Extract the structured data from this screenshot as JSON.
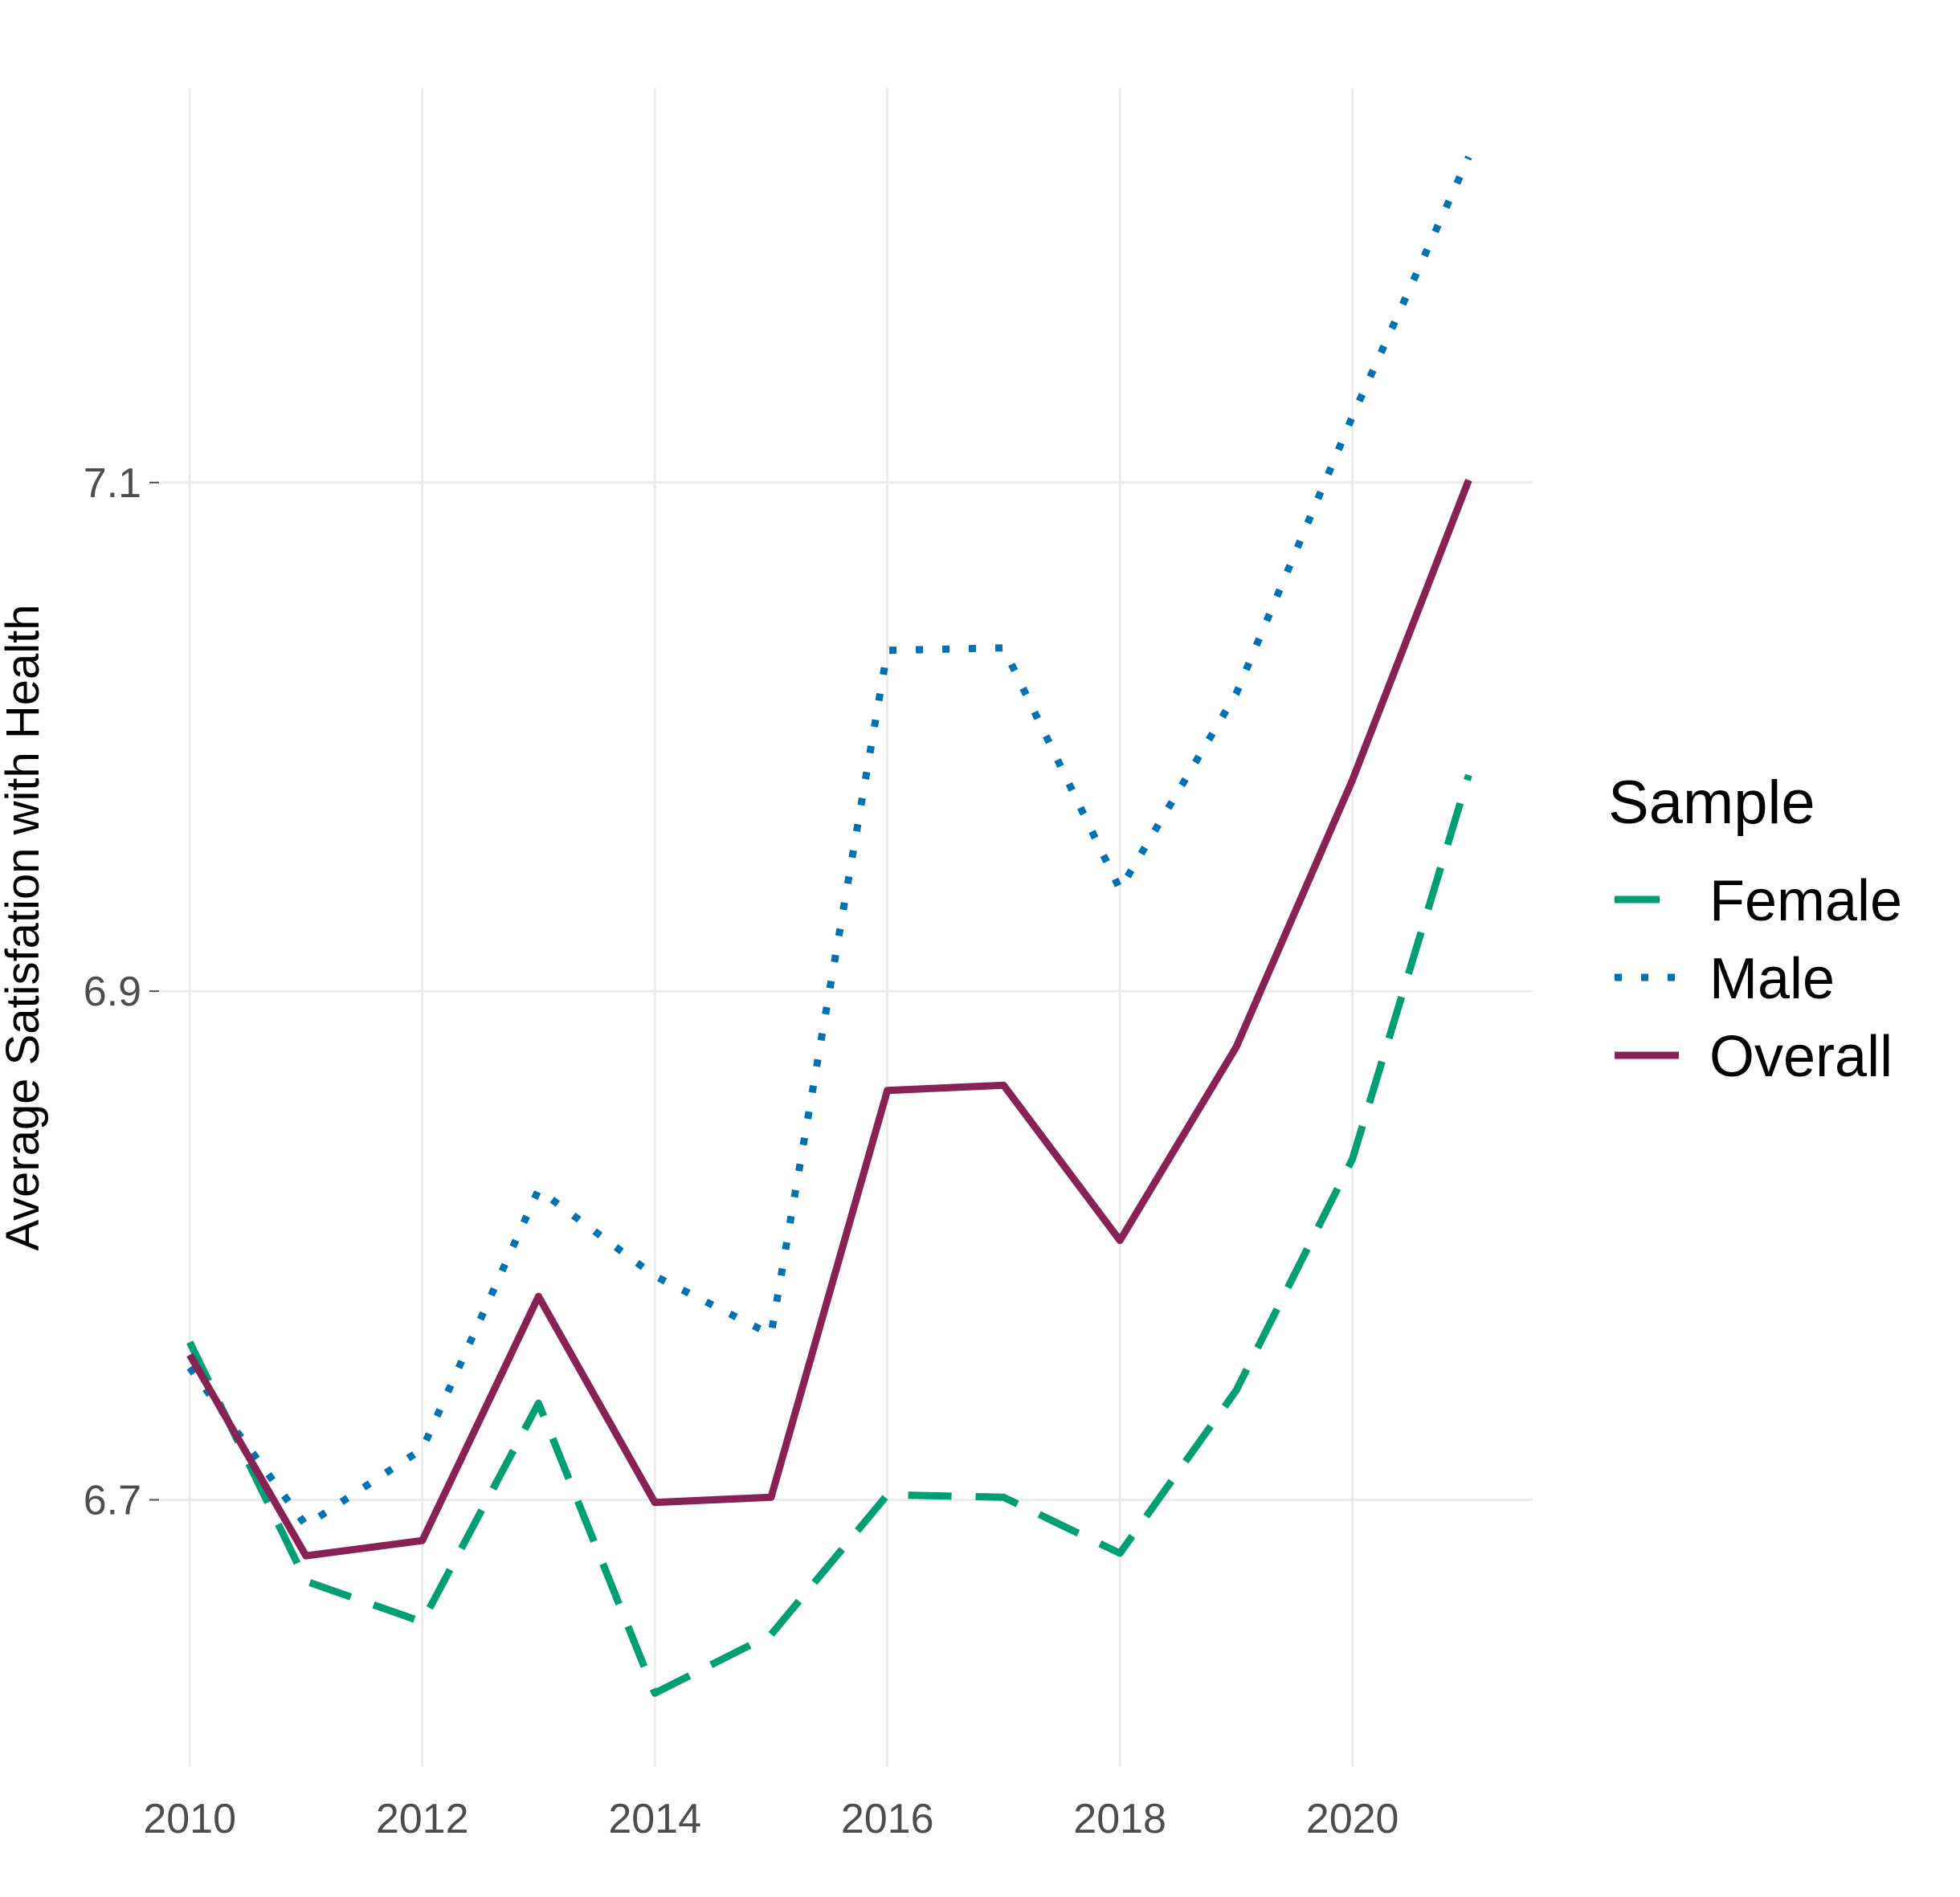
{
  "chart_data": {
    "type": "line",
    "title": "",
    "xlabel": "",
    "ylabel": "Average Satisfation with Health",
    "x": [
      2010,
      2011,
      2012,
      2013,
      2014,
      2015,
      2016,
      2017,
      2018,
      2019,
      2020,
      2021
    ],
    "xticks": [
      "2010",
      "2012",
      "2014",
      "2016",
      "2018",
      "2020"
    ],
    "xlim": [
      2009.75,
      2021.55
    ],
    "yticks": [
      "6.7",
      "6.9",
      "7.1"
    ],
    "ylim": [
      6.595,
      7.255
    ],
    "grid": true,
    "legend": {
      "title": "Sample",
      "position": "right"
    },
    "series": [
      {
        "name": "Female",
        "style": "dashed",
        "color": "#009E73",
        "values": [
          6.762,
          6.668,
          6.652,
          6.738,
          6.624,
          6.647,
          6.702,
          6.701,
          6.679,
          6.743,
          6.834,
          6.985
        ]
      },
      {
        "name": "Male",
        "style": "dotted",
        "color": "#0072B2",
        "values": [
          6.752,
          6.69,
          6.72,
          6.822,
          6.788,
          6.765,
          7.034,
          7.035,
          6.94,
          7.017,
          7.126,
          7.228
        ]
      },
      {
        "name": "Overall",
        "style": "solid",
        "color": "#882255",
        "values": [
          6.757,
          6.678,
          6.684,
          6.78,
          6.699,
          6.701,
          6.861,
          6.863,
          6.802,
          6.878,
          6.983,
          7.101
        ]
      }
    ]
  }
}
